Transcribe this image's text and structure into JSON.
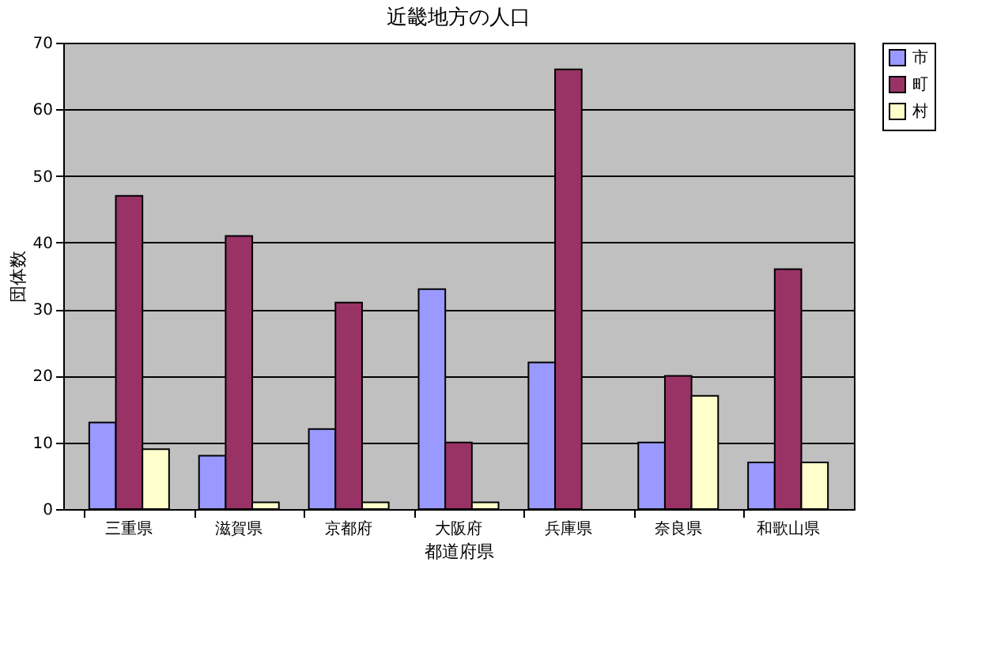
{
  "chart_data": {
    "type": "bar",
    "title": "近畿地方の人口",
    "xlabel": "都道府県",
    "ylabel": "団体数",
    "categories": [
      "三重県",
      "滋賀県",
      "京都府",
      "大阪府",
      "兵庫県",
      "奈良県",
      "和歌山県"
    ],
    "series": [
      {
        "name": "市",
        "color": "#9999ff",
        "values": [
          13,
          8,
          12,
          33,
          22,
          10,
          7
        ]
      },
      {
        "name": "町",
        "color": "#993366",
        "values": [
          47,
          41,
          31,
          10,
          66,
          20,
          36
        ]
      },
      {
        "name": "村",
        "color": "#ffffcc",
        "values": [
          9,
          1,
          1,
          1,
          null,
          17,
          7
        ]
      }
    ],
    "ylim": [
      0,
      70
    ],
    "yticks": [
      0,
      10,
      20,
      30,
      40,
      50,
      60,
      70
    ],
    "grid": "y",
    "legend": "right"
  }
}
